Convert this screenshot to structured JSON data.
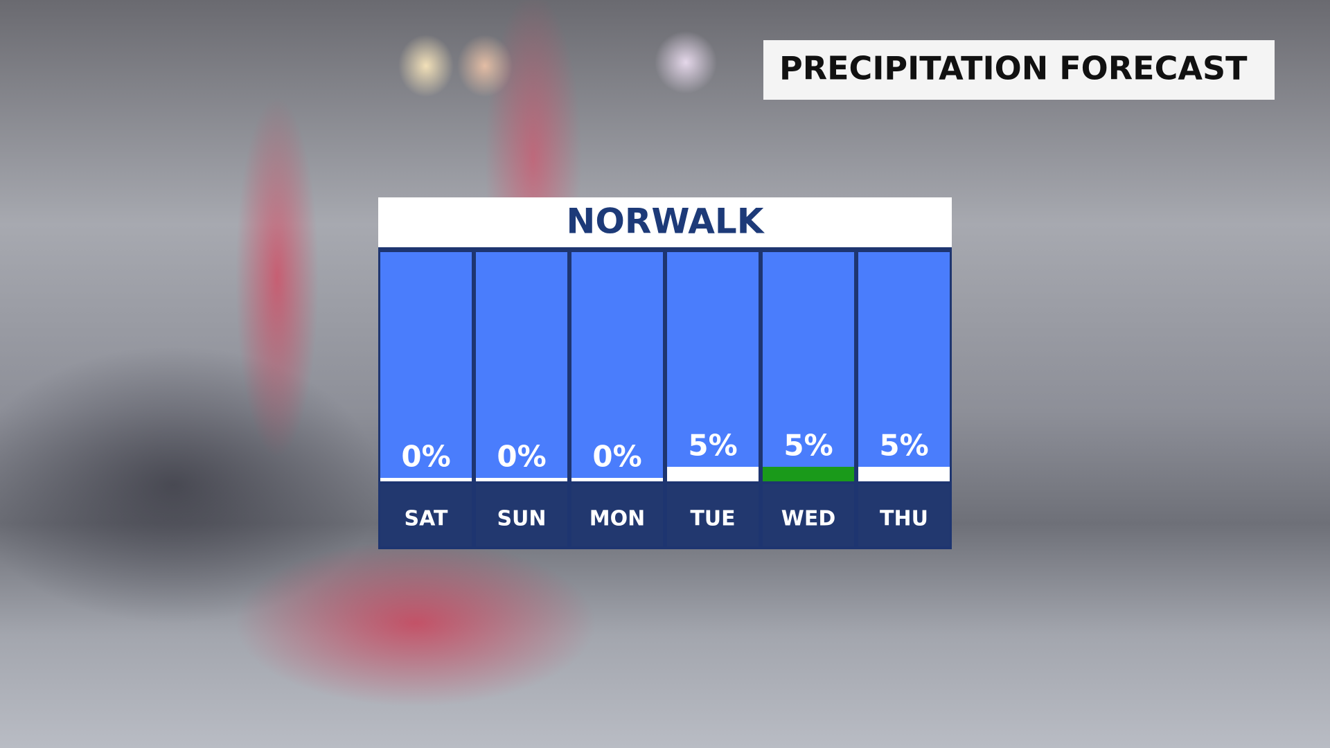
{
  "banner": "PRECIPITATION FORECAST",
  "chart_data": {
    "type": "bar",
    "title": "NORWALK",
    "categories": [
      "SAT",
      "SUN",
      "MON",
      "TUE",
      "WED",
      "THU"
    ],
    "values": [
      0,
      0,
      0,
      5,
      5,
      5
    ],
    "value_labels": [
      "0%",
      "0%",
      "0%",
      "5%",
      "5%",
      "5%"
    ],
    "colors": [
      "#ffffff",
      "#ffffff",
      "#ffffff",
      "#ffffff",
      "#1a9a1a",
      "#ffffff"
    ],
    "ylim": [
      0,
      100
    ]
  }
}
